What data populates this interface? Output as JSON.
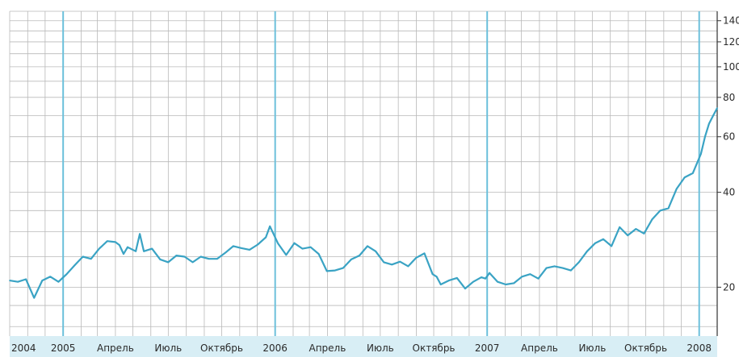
{
  "chart_data": {
    "type": "line",
    "title": "",
    "xlabel": "",
    "ylabel": "",
    "y_scale": "log",
    "ylim": [
      14,
      150
    ],
    "y_ticks": [
      20,
      40,
      60,
      80,
      100,
      120,
      140
    ],
    "x_tick_labels": [
      "2004",
      "2005",
      "Апрель",
      "Июль",
      "Октябрь",
      "2006",
      "Апрель",
      "Июль",
      "Октябрь",
      "2007",
      "Апрель",
      "Июль",
      "Октябрь",
      "2008"
    ],
    "x_tick_dates": [
      "2004-10-01",
      "2005-01-01",
      "2005-04-01",
      "2005-07-01",
      "2005-10-01",
      "2006-01-01",
      "2006-04-01",
      "2006-07-01",
      "2006-10-01",
      "2007-01-01",
      "2007-04-01",
      "2007-07-01",
      "2007-10-01",
      "2008-01-01"
    ],
    "xlim": [
      "2004-10-01",
      "2008-02-01"
    ],
    "grid": true,
    "year_lines": [
      "2005-01-01",
      "2006-01-01",
      "2007-01-01",
      "2008-01-01"
    ],
    "colors": {
      "line": "#3aa3c4",
      "grid": "#b9b9b9",
      "axis_band": "#d8eef5",
      "year_line": "#6cc0db"
    },
    "series": [
      {
        "points": [
          [
            "2004-10-01",
            21.0
          ],
          [
            "2004-10-15",
            20.8
          ],
          [
            "2004-10-29",
            21.2
          ],
          [
            "2004-11-12",
            18.5
          ],
          [
            "2004-11-26",
            21.0
          ],
          [
            "2004-12-10",
            21.6
          ],
          [
            "2004-12-24",
            20.8
          ],
          [
            "2005-01-07",
            22.0
          ],
          [
            "2005-01-21",
            23.5
          ],
          [
            "2005-02-04",
            25.0
          ],
          [
            "2005-02-18",
            24.6
          ],
          [
            "2005-03-04",
            26.5
          ],
          [
            "2005-03-18",
            28.0
          ],
          [
            "2005-04-01",
            27.8
          ],
          [
            "2005-04-08",
            27.2
          ],
          [
            "2005-04-15",
            25.5
          ],
          [
            "2005-04-22",
            26.8
          ],
          [
            "2005-05-06",
            26.0
          ],
          [
            "2005-05-13",
            29.5
          ],
          [
            "2005-05-20",
            26.0
          ],
          [
            "2005-06-03",
            26.5
          ],
          [
            "2005-06-17",
            24.5
          ],
          [
            "2005-07-01",
            24.0
          ],
          [
            "2005-07-15",
            25.2
          ],
          [
            "2005-07-29",
            25.0
          ],
          [
            "2005-08-12",
            24.0
          ],
          [
            "2005-08-26",
            25.0
          ],
          [
            "2005-09-09",
            24.6
          ],
          [
            "2005-09-23",
            24.6
          ],
          [
            "2005-10-07",
            25.7
          ],
          [
            "2005-10-21",
            27.0
          ],
          [
            "2005-11-04",
            26.6
          ],
          [
            "2005-11-18",
            26.3
          ],
          [
            "2005-12-02",
            27.3
          ],
          [
            "2005-12-16",
            28.8
          ],
          [
            "2005-12-23",
            31.2
          ],
          [
            "2006-01-06",
            27.5
          ],
          [
            "2006-01-20",
            25.3
          ],
          [
            "2006-02-03",
            27.6
          ],
          [
            "2006-02-17",
            26.5
          ],
          [
            "2006-03-03",
            26.8
          ],
          [
            "2006-03-17",
            25.5
          ],
          [
            "2006-03-31",
            22.5
          ],
          [
            "2006-04-14",
            22.6
          ],
          [
            "2006-04-28",
            23.0
          ],
          [
            "2006-05-12",
            24.5
          ],
          [
            "2006-05-26",
            25.2
          ],
          [
            "2006-06-09",
            27.0
          ],
          [
            "2006-06-23",
            26.0
          ],
          [
            "2006-07-07",
            24.0
          ],
          [
            "2006-07-21",
            23.6
          ],
          [
            "2006-08-04",
            24.1
          ],
          [
            "2006-08-18",
            23.3
          ],
          [
            "2006-09-01",
            24.8
          ],
          [
            "2006-09-15",
            25.6
          ],
          [
            "2006-09-29",
            22.0
          ],
          [
            "2006-10-06",
            21.6
          ],
          [
            "2006-10-13",
            20.4
          ],
          [
            "2006-10-27",
            21.0
          ],
          [
            "2006-11-10",
            21.4
          ],
          [
            "2006-11-24",
            19.8
          ],
          [
            "2006-12-08",
            20.8
          ],
          [
            "2006-12-22",
            21.5
          ],
          [
            "2006-12-29",
            21.3
          ],
          [
            "2007-01-05",
            22.2
          ],
          [
            "2007-01-19",
            20.8
          ],
          [
            "2007-02-02",
            20.4
          ],
          [
            "2007-02-16",
            20.6
          ],
          [
            "2007-03-02",
            21.6
          ],
          [
            "2007-03-16",
            22.0
          ],
          [
            "2007-03-30",
            21.3
          ],
          [
            "2007-04-13",
            23.0
          ],
          [
            "2007-04-27",
            23.3
          ],
          [
            "2007-05-11",
            23.0
          ],
          [
            "2007-05-25",
            22.6
          ],
          [
            "2007-06-08",
            24.0
          ],
          [
            "2007-06-22",
            26.0
          ],
          [
            "2007-07-06",
            27.6
          ],
          [
            "2007-07-20",
            28.4
          ],
          [
            "2007-08-03",
            27.0
          ],
          [
            "2007-08-17",
            31.0
          ],
          [
            "2007-08-31",
            29.2
          ],
          [
            "2007-09-14",
            30.6
          ],
          [
            "2007-09-28",
            29.6
          ],
          [
            "2007-10-12",
            32.8
          ],
          [
            "2007-10-26",
            35.0
          ],
          [
            "2007-11-09",
            35.6
          ],
          [
            "2007-11-23",
            41.0
          ],
          [
            "2007-12-07",
            44.6
          ],
          [
            "2007-12-21",
            46.0
          ],
          [
            "2008-01-04",
            53.0
          ],
          [
            "2008-01-11",
            60.0
          ],
          [
            "2008-01-18",
            66.0
          ],
          [
            "2008-01-25",
            70.0
          ],
          [
            "2008-02-01",
            74.0
          ]
        ]
      }
    ]
  }
}
